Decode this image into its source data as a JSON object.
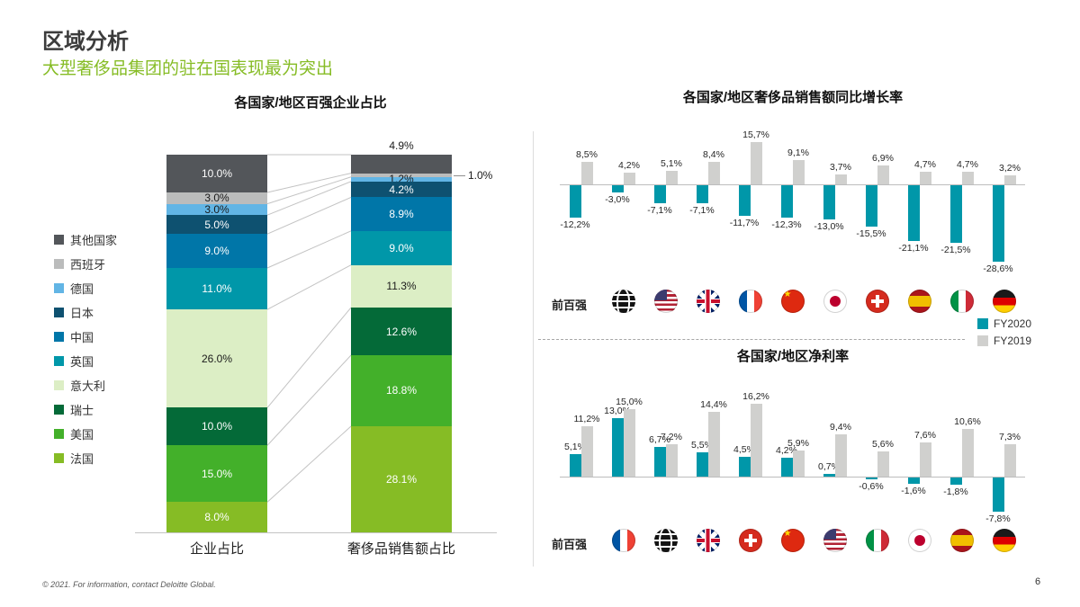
{
  "page": {
    "title": "区域分析",
    "subtitle": "大型奢侈品集团的驻在国表现最为突出",
    "footer": "© 2021. For information, contact Deloitte Global.",
    "page_number": "6"
  },
  "chart_data": [
    {
      "id": "top100_share_by_country",
      "type": "bar",
      "subtype": "stacked-percent",
      "title": "各国家/地区百强企业占比",
      "categories": [
        "企业占比",
        "奢侈品销售额占比"
      ],
      "legend_position": "left",
      "series": [
        {
          "name": "其他国家",
          "color": "#53565A",
          "label_color": "#ffffff",
          "values": [
            10.0,
            4.9
          ]
        },
        {
          "name": "西班牙",
          "color": "#BBBCBC",
          "label_color": "#1a1a1a",
          "values": [
            3.0,
            1.0
          ]
        },
        {
          "name": "德国",
          "color": "#62B5E5",
          "label_color": "#1a1a1a",
          "values": [
            3.0,
            1.2
          ]
        },
        {
          "name": "日本",
          "color": "#0E5170",
          "label_color": "#ffffff",
          "values": [
            5.0,
            4.2
          ]
        },
        {
          "name": "中国",
          "color": "#0076A8",
          "label_color": "#ffffff",
          "values": [
            9.0,
            8.9
          ]
        },
        {
          "name": "英国",
          "color": "#0097A9",
          "label_color": "#ffffff",
          "values": [
            11.0,
            9.0
          ]
        },
        {
          "name": "意大利",
          "color": "#DCEEC5",
          "label_color": "#1a1a1a",
          "values": [
            26.0,
            11.3
          ]
        },
        {
          "name": "瑞士",
          "color": "#046A38",
          "label_color": "#ffffff",
          "values": [
            10.0,
            12.6
          ]
        },
        {
          "name": "美国",
          "color": "#43B02A",
          "label_color": "#ffffff",
          "values": [
            15.0,
            18.8
          ]
        },
        {
          "name": "法国",
          "color": "#86BC25",
          "label_color": "#ffffff",
          "values": [
            8.0,
            28.1
          ]
        }
      ]
    },
    {
      "id": "luxury_sales_growth_yoy",
      "type": "bar",
      "title": "各国家/地区奢侈品销售额同比增长率",
      "row_label": "前百强",
      "value_format": "comma-decimal-percent",
      "flags": [
        "globe",
        "us",
        "uk",
        "france",
        "china",
        "japan",
        "switzerland",
        "spain",
        "italy",
        "germany"
      ],
      "series": [
        {
          "name": "FY2020",
          "color": "#0097A9",
          "values": [
            -12.2,
            -3.0,
            -7.1,
            -7.1,
            -11.7,
            -12.3,
            -13.0,
            -15.5,
            -21.1,
            -21.5,
            -28.6
          ]
        },
        {
          "name": "FY2019",
          "color": "#D0D0CE",
          "values": [
            8.5,
            4.2,
            5.1,
            8.4,
            15.7,
            9.1,
            3.7,
            6.9,
            4.7,
            4.7,
            3.2
          ]
        }
      ]
    },
    {
      "id": "net_profit_margin",
      "type": "bar",
      "title": "各国家/地区净利率",
      "row_label": "前百强",
      "value_format": "comma-decimal-percent",
      "flags": [
        "france",
        "globe",
        "uk",
        "switzerland",
        "china",
        "us",
        "italy",
        "japan",
        "spain",
        "germany"
      ],
      "series": [
        {
          "name": "FY2020",
          "color": "#0097A9",
          "values": [
            5.1,
            13.0,
            6.7,
            5.5,
            4.5,
            4.2,
            0.7,
            -0.6,
            -1.6,
            -1.8,
            -7.8
          ]
        },
        {
          "name": "FY2019",
          "color": "#D0D0CE",
          "values": [
            11.2,
            15.0,
            7.2,
            14.4,
            16.2,
            5.9,
            9.4,
            5.6,
            7.6,
            10.6,
            7.3
          ]
        }
      ]
    }
  ]
}
